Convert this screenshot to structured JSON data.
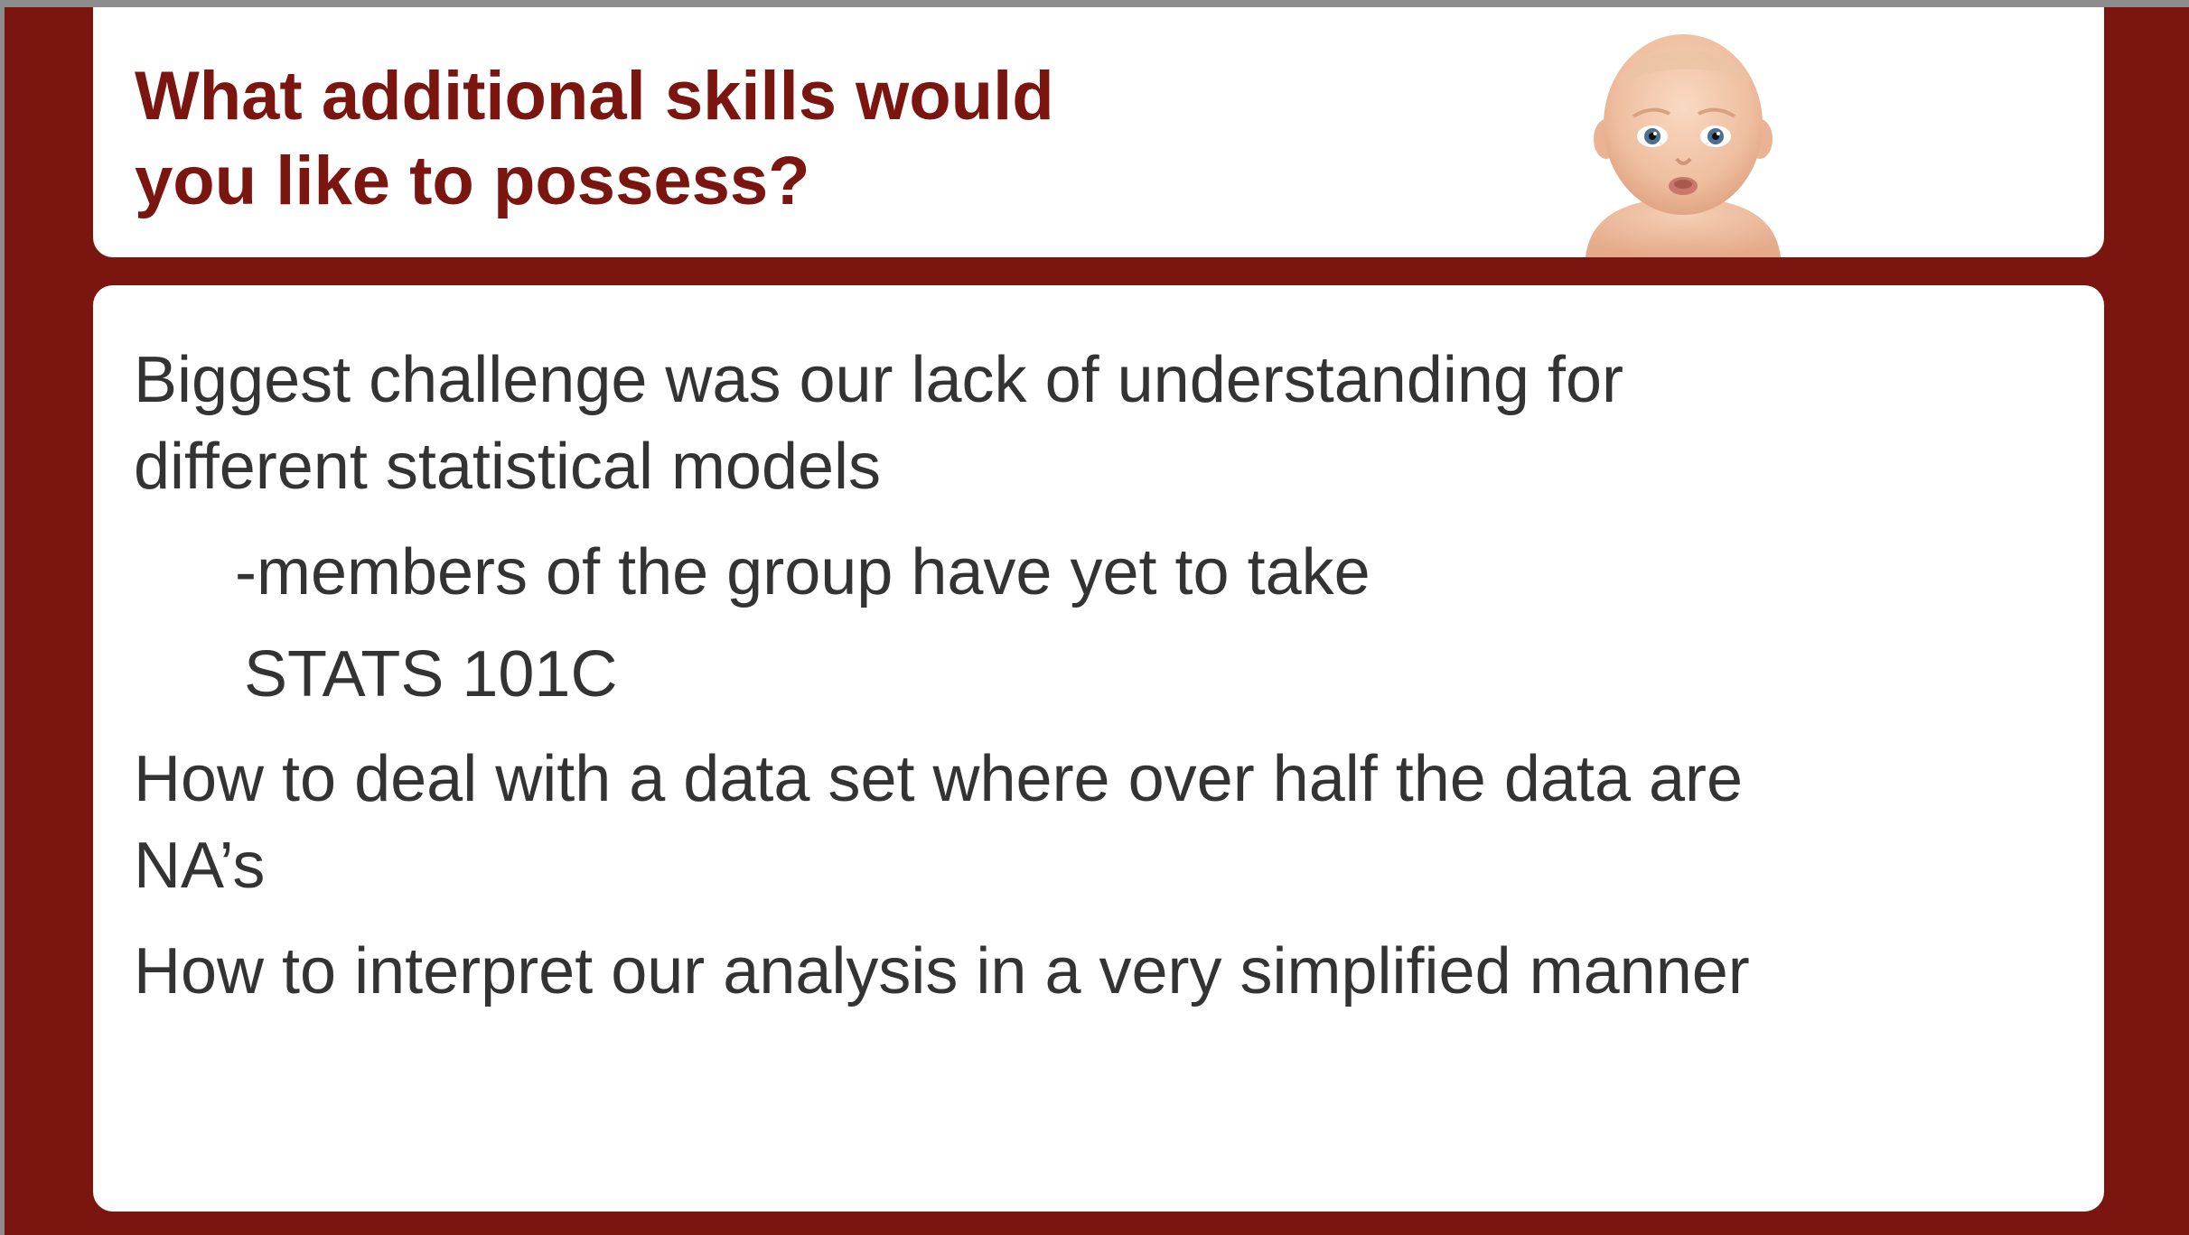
{
  "slide": {
    "title": "What additional skills would\nyou like to possess?",
    "image_icon": "baby-photo-icon",
    "body": {
      "point1_line1": "Biggest challenge was our lack of understanding for",
      "point1_line2": "different statistical models",
      "sub1_line1": "-members of the group have yet to take",
      "sub1_line2": "STATS 101C",
      "point2_line1": "How to deal with a data set where over half the data are",
      "point2_line2": "NA’s",
      "point3": "How to interpret our analysis in a very simplified manner"
    }
  },
  "colors": {
    "accent": "#7a1510",
    "body_text": "#333333",
    "panel": "#ffffff"
  }
}
